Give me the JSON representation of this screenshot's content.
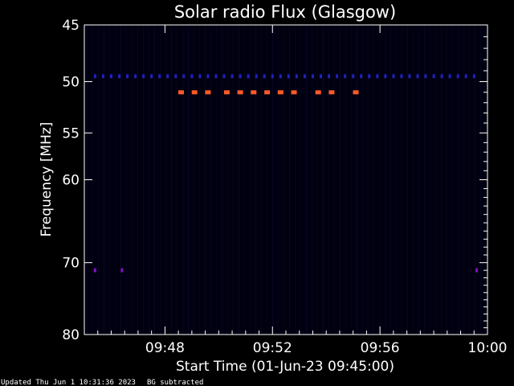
{
  "chart_data": {
    "type": "heatmap",
    "title": "Solar radio Flux (Glasgow)",
    "xlabel": "Start Time (01-Jun-23 09:45:00)",
    "ylabel": "Frequency [MHz]",
    "x_range_minutes": [
      0,
      15
    ],
    "x_ticks": [
      {
        "minute": 3,
        "label": "09:48"
      },
      {
        "minute": 7,
        "label": "09:52"
      },
      {
        "minute": 11,
        "label": "09:56"
      },
      {
        "minute": 15,
        "label": "10:00"
      }
    ],
    "y_scale": "log",
    "y_range": [
      45,
      80
    ],
    "y_ticks": [
      45,
      50,
      55,
      60,
      70,
      80
    ],
    "background_color": "#000010",
    "features": [
      {
        "name": "50 MHz band",
        "frequency": 49.5,
        "color": "#2020c0",
        "minutes": [
          0.4,
          0.7,
          1.0,
          1.3,
          1.6,
          1.9,
          2.2,
          2.5,
          2.8,
          3.1,
          3.4,
          3.7,
          4.0,
          4.3,
          4.6,
          4.9,
          5.2,
          5.5,
          5.8,
          6.1,
          6.4,
          6.7,
          7.0,
          7.3,
          7.6,
          7.9,
          8.2,
          8.5,
          8.8,
          9.1,
          9.4,
          9.7,
          10.0,
          10.3,
          10.6,
          10.9,
          11.2,
          11.5,
          11.8,
          12.1,
          12.4,
          12.7,
          13.0,
          13.3,
          13.6,
          13.9,
          14.2,
          14.5
        ]
      },
      {
        "name": "51 MHz bursts",
        "frequency": 51,
        "color": "#ff5a28",
        "minutes": [
          3.6,
          4.1,
          4.6,
          5.3,
          5.8,
          6.3,
          6.8,
          7.3,
          7.8,
          8.7,
          9.2,
          10.1
        ]
      },
      {
        "name": "71 MHz markers",
        "frequency": 71,
        "color": "#8010c0",
        "minutes": [
          0.4,
          1.4,
          14.6
        ]
      }
    ]
  },
  "footer": {
    "updated": "Updated Thu Jun  1 10:31:36 2023",
    "note": "BG subtracted"
  }
}
